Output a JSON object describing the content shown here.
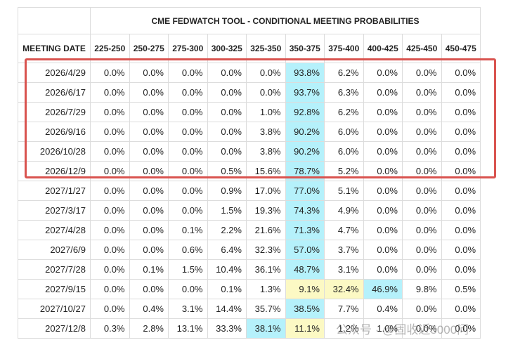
{
  "table": {
    "title": "CME FEDWATCH TOOL - CONDITIONAL MEETING PROBABILITIES",
    "columns": [
      "MEETING DATE",
      "225-250",
      "250-275",
      "275-300",
      "300-325",
      "325-350",
      "350-375",
      "375-400",
      "400-425",
      "425-450",
      "450-475"
    ],
    "rows": [
      [
        "2026/4/29",
        "0.0%",
        "0.0%",
        "0.0%",
        "0.0%",
        "0.0%",
        "93.8%",
        "6.2%",
        "0.0%",
        "0.0%",
        "0.0%"
      ],
      [
        "2026/6/17",
        "0.0%",
        "0.0%",
        "0.0%",
        "0.0%",
        "0.0%",
        "93.7%",
        "6.3%",
        "0.0%",
        "0.0%",
        "0.0%"
      ],
      [
        "2026/7/29",
        "0.0%",
        "0.0%",
        "0.0%",
        "0.0%",
        "1.0%",
        "92.8%",
        "6.2%",
        "0.0%",
        "0.0%",
        "0.0%"
      ],
      [
        "2026/9/16",
        "0.0%",
        "0.0%",
        "0.0%",
        "0.0%",
        "3.8%",
        "90.2%",
        "6.0%",
        "0.0%",
        "0.0%",
        "0.0%"
      ],
      [
        "2026/10/28",
        "0.0%",
        "0.0%",
        "0.0%",
        "0.0%",
        "3.8%",
        "90.2%",
        "6.0%",
        "0.0%",
        "0.0%",
        "0.0%"
      ],
      [
        "2026/12/9",
        "0.0%",
        "0.0%",
        "0.0%",
        "0.5%",
        "15.6%",
        "78.7%",
        "5.2%",
        "0.0%",
        "0.0%",
        "0.0%"
      ],
      [
        "2027/1/27",
        "0.0%",
        "0.0%",
        "0.0%",
        "0.9%",
        "17.0%",
        "77.0%",
        "5.1%",
        "0.0%",
        "0.0%",
        "0.0%"
      ],
      [
        "2027/3/17",
        "0.0%",
        "0.0%",
        "0.0%",
        "1.5%",
        "19.3%",
        "74.3%",
        "4.9%",
        "0.0%",
        "0.0%",
        "0.0%"
      ],
      [
        "2027/4/28",
        "0.0%",
        "0.0%",
        "0.1%",
        "2.2%",
        "21.6%",
        "71.3%",
        "4.7%",
        "0.0%",
        "0.0%",
        "0.0%"
      ],
      [
        "2027/6/9",
        "0.0%",
        "0.0%",
        "0.6%",
        "6.4%",
        "32.3%",
        "57.0%",
        "3.7%",
        "0.0%",
        "0.0%",
        "0.0%"
      ],
      [
        "2027/7/28",
        "0.0%",
        "0.1%",
        "1.5%",
        "10.4%",
        "36.1%",
        "48.7%",
        "3.1%",
        "0.0%",
        "0.0%",
        "0.0%"
      ],
      [
        "2027/9/15",
        "0.0%",
        "0.0%",
        "0.0%",
        "0.1%",
        "1.3%",
        "9.1%",
        "32.4%",
        "46.9%",
        "9.8%",
        "0.5%"
      ],
      [
        "2027/10/27",
        "0.0%",
        "0.4%",
        "3.1%",
        "14.4%",
        "35.7%",
        "38.5%",
        "7.7%",
        "0.4%",
        "0.0%",
        "0.0%"
      ],
      [
        "2027/12/8",
        "0.3%",
        "2.8%",
        "13.1%",
        "33.3%",
        "38.1%",
        "11.1%",
        "1.2%",
        "1.0%",
        "0.0%",
        "0.0%"
      ]
    ],
    "cyan_color": "#b5f1fb",
    "yellow_color": "#fcf9c4",
    "cyan_cells": [
      6,
      6,
      6,
      6,
      6,
      6,
      6,
      6,
      6,
      6,
      6,
      8,
      6,
      5
    ],
    "yellow_cells": [
      [],
      [],
      [],
      [],
      [],
      [],
      [],
      [],
      [],
      [],
      [],
      [
        6,
        7
      ],
      [],
      [
        6
      ]
    ]
  },
  "watermark": "公众号 · @固收近5000问"
}
